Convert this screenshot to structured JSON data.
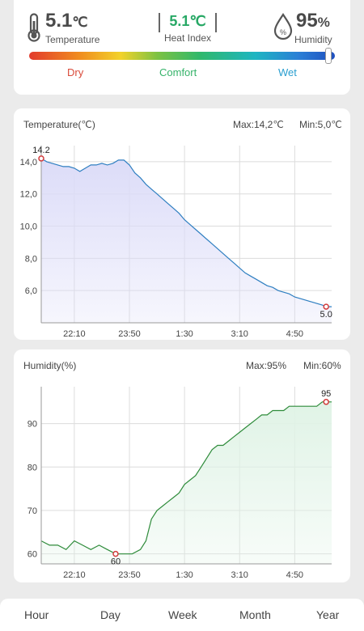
{
  "top": {
    "temperature": {
      "value": "5.1",
      "unit": "℃",
      "label": "Temperature"
    },
    "heat_index": {
      "value": "5.1℃",
      "label": "Heat Index"
    },
    "humidity": {
      "value": "95",
      "unit": "%",
      "label": "Humidity"
    },
    "comfort_scale": {
      "dry": "Dry",
      "comfort": "Comfort",
      "wet": "Wet",
      "marker": 0.98
    },
    "colors": {
      "dry": "#d94a3a",
      "comfort": "#36b36a",
      "wet": "#2a9fd0",
      "heat_index": "#27a865"
    }
  },
  "chart_data": [
    {
      "type": "area",
      "title": "Temperature(℃)",
      "max_text": "Max:14,2℃",
      "min_text": "Min:5,0℃",
      "x_ticks": [
        "22:10",
        "23:50",
        "1:30",
        "3:10",
        "4:50"
      ],
      "x_tick_values": [
        1330,
        1430,
        1530,
        1630,
        1730
      ],
      "y_ticks": [
        "14,0",
        "12,0",
        "10,0",
        "8,0",
        "6,0"
      ],
      "y_tick_values": [
        14,
        12,
        10,
        8,
        6
      ],
      "xlim": [
        1270,
        1797
      ],
      "ylim": [
        4.0,
        15.0
      ],
      "x": [
        1270,
        1280,
        1290,
        1300,
        1310,
        1320,
        1330,
        1340,
        1350,
        1360,
        1370,
        1380,
        1390,
        1400,
        1410,
        1420,
        1430,
        1440,
        1450,
        1460,
        1470,
        1480,
        1490,
        1500,
        1510,
        1520,
        1530,
        1540,
        1550,
        1560,
        1570,
        1580,
        1590,
        1600,
        1610,
        1620,
        1630,
        1640,
        1650,
        1660,
        1670,
        1680,
        1690,
        1700,
        1710,
        1720,
        1730,
        1740,
        1750,
        1760,
        1770,
        1780,
        1787,
        1797
      ],
      "y": [
        14.2,
        14.0,
        13.9,
        13.8,
        13.7,
        13.7,
        13.6,
        13.4,
        13.6,
        13.8,
        13.8,
        13.9,
        13.8,
        13.9,
        14.1,
        14.1,
        13.8,
        13.3,
        13.0,
        12.6,
        12.3,
        12.0,
        11.7,
        11.4,
        11.1,
        10.8,
        10.4,
        10.1,
        9.8,
        9.5,
        9.2,
        8.9,
        8.6,
        8.3,
        8.0,
        7.7,
        7.4,
        7.1,
        6.9,
        6.7,
        6.5,
        6.3,
        6.2,
        6.0,
        5.9,
        5.8,
        5.6,
        5.5,
        5.4,
        5.3,
        5.2,
        5.1,
        5.0,
        5.0
      ],
      "annotations": [
        {
          "label": "14.2",
          "x": 1270,
          "y": 14.2
        },
        {
          "label": "5.0",
          "x": 1787,
          "y": 5.0
        }
      ],
      "color": "#2f7fc1",
      "fill": "#dcdcf8"
    },
    {
      "type": "area",
      "title": "Humidity(%)",
      "max_text": "Max:95%",
      "min_text": "Min:60%",
      "x_ticks": [
        "22:10",
        "23:50",
        "1:30",
        "3:10",
        "4:50"
      ],
      "x_tick_values": [
        1330,
        1430,
        1530,
        1630,
        1730
      ],
      "y_ticks": [
        "90",
        "80",
        "70",
        "60"
      ],
      "y_tick_values": [
        90,
        80,
        70,
        60
      ],
      "xlim": [
        1270,
        1797
      ],
      "ylim": [
        57.7,
        98.5
      ],
      "x": [
        1270,
        1285,
        1300,
        1315,
        1330,
        1345,
        1360,
        1375,
        1390,
        1405,
        1420,
        1435,
        1450,
        1460,
        1470,
        1480,
        1490,
        1500,
        1510,
        1520,
        1530,
        1540,
        1550,
        1560,
        1570,
        1580,
        1590,
        1600,
        1610,
        1620,
        1630,
        1640,
        1650,
        1660,
        1670,
        1680,
        1690,
        1700,
        1710,
        1720,
        1730,
        1740,
        1750,
        1760,
        1770,
        1780,
        1787,
        1797
      ],
      "y": [
        63,
        62,
        62,
        61,
        63,
        62,
        61,
        62,
        61,
        60,
        60,
        60,
        61,
        63,
        68,
        70,
        71,
        72,
        73,
        74,
        76,
        77,
        78,
        80,
        82,
        84,
        85,
        85,
        86,
        87,
        88,
        89,
        90,
        91,
        92,
        92,
        93,
        93,
        93,
        94,
        94,
        94,
        94,
        94,
        94,
        95,
        95,
        95
      ],
      "annotations": [
        {
          "label": "60",
          "x": 1405,
          "y": 60
        },
        {
          "label": "95",
          "x": 1787,
          "y": 95
        }
      ],
      "color": "#2e8b3a",
      "fill": "#e0f3e6"
    }
  ],
  "periods": [
    "Hour",
    "Day",
    "Week",
    "Month",
    "Year"
  ]
}
